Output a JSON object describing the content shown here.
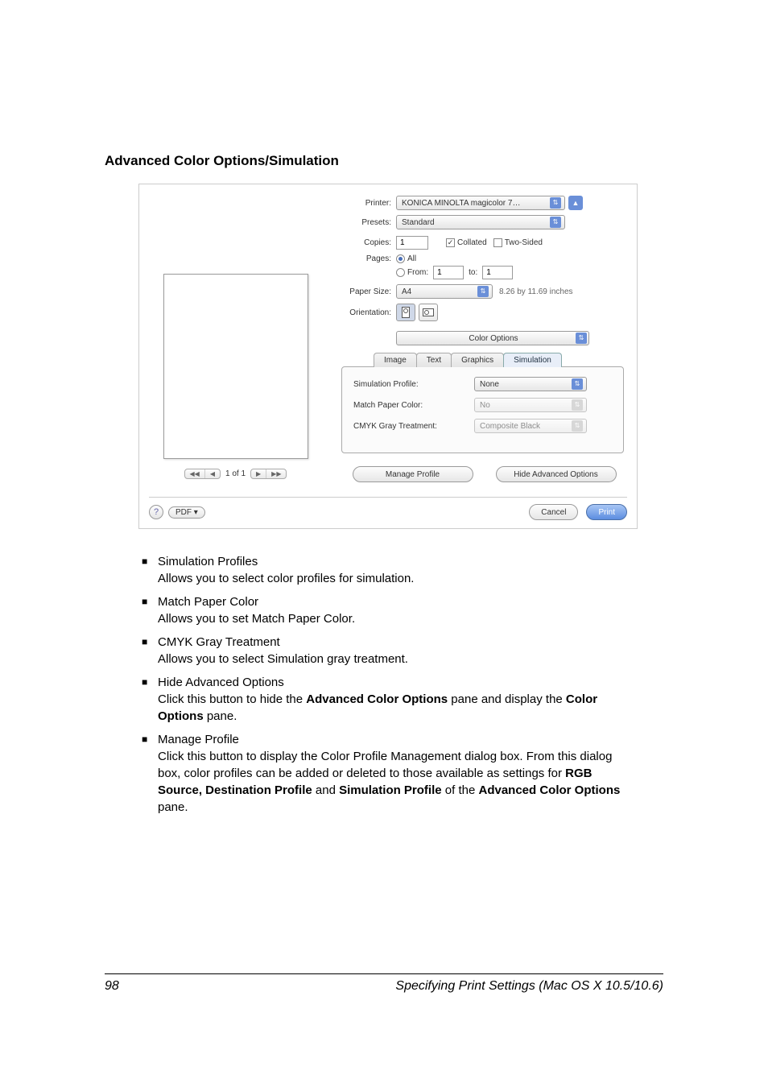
{
  "section_title": "Advanced Color Options/Simulation",
  "dialog": {
    "printer_label": "Printer:",
    "printer_value": "KONICA MINOLTA magicolor 7…",
    "presets_label": "Presets:",
    "presets_value": "Standard",
    "copies_label": "Copies:",
    "copies_value": "1",
    "collated_label": "Collated",
    "two_sided_label": "Two-Sided",
    "pages_label": "Pages:",
    "pages_all": "All",
    "pages_from": "From:",
    "from_value": "1",
    "to_label": "to:",
    "to_value": "1",
    "papersize_label": "Paper Size:",
    "papersize_value": "A4",
    "papersize_dims": "8.26 by 11.69 inches",
    "orientation_label": "Orientation:",
    "pane_select": "Color Options",
    "tabs": {
      "image": "Image",
      "text": "Text",
      "graphics": "Graphics",
      "simulation": "Simulation"
    },
    "simprofile_label": "Simulation Profile:",
    "simprofile_value": "None",
    "matchpaper_label": "Match Paper Color:",
    "matchpaper_value": "No",
    "cmyk_label": "CMYK Gray Treatment:",
    "cmyk_value": "Composite Black",
    "manage_btn": "Manage Profile",
    "hide_btn": "Hide Advanced Options",
    "preview_counter": "1 of 1",
    "pdf_label": "PDF ▾",
    "cancel": "Cancel",
    "print": "Print"
  },
  "bullets": [
    {
      "title": "Simulation Profiles",
      "desc": "Allows you to select color profiles for simulation."
    },
    {
      "title": "Match Paper Color",
      "desc": "Allows you to set Match Paper Color."
    },
    {
      "title": "CMYK Gray Treatment",
      "desc": "Allows you to select Simulation gray treatment."
    },
    {
      "title": "Hide Advanced Options",
      "desc_html": "Click this button to hide the <b>Advanced Color Options</b> pane and display the <b>Color Options</b> pane."
    },
    {
      "title": "Manage Profile",
      "desc_html": "Click this button to display the Color Profile Management dialog box. From this dialog box, color profiles can be added or deleted to those available as settings for <b>RGB Source, Destination Profile</b> and <b>Simulation Profile</b> of the <b>Advanced Color Options</b> pane."
    }
  ],
  "footer": {
    "page_number": "98",
    "title": "Specifying Print Settings (Mac OS X 10.5/10.6)"
  }
}
